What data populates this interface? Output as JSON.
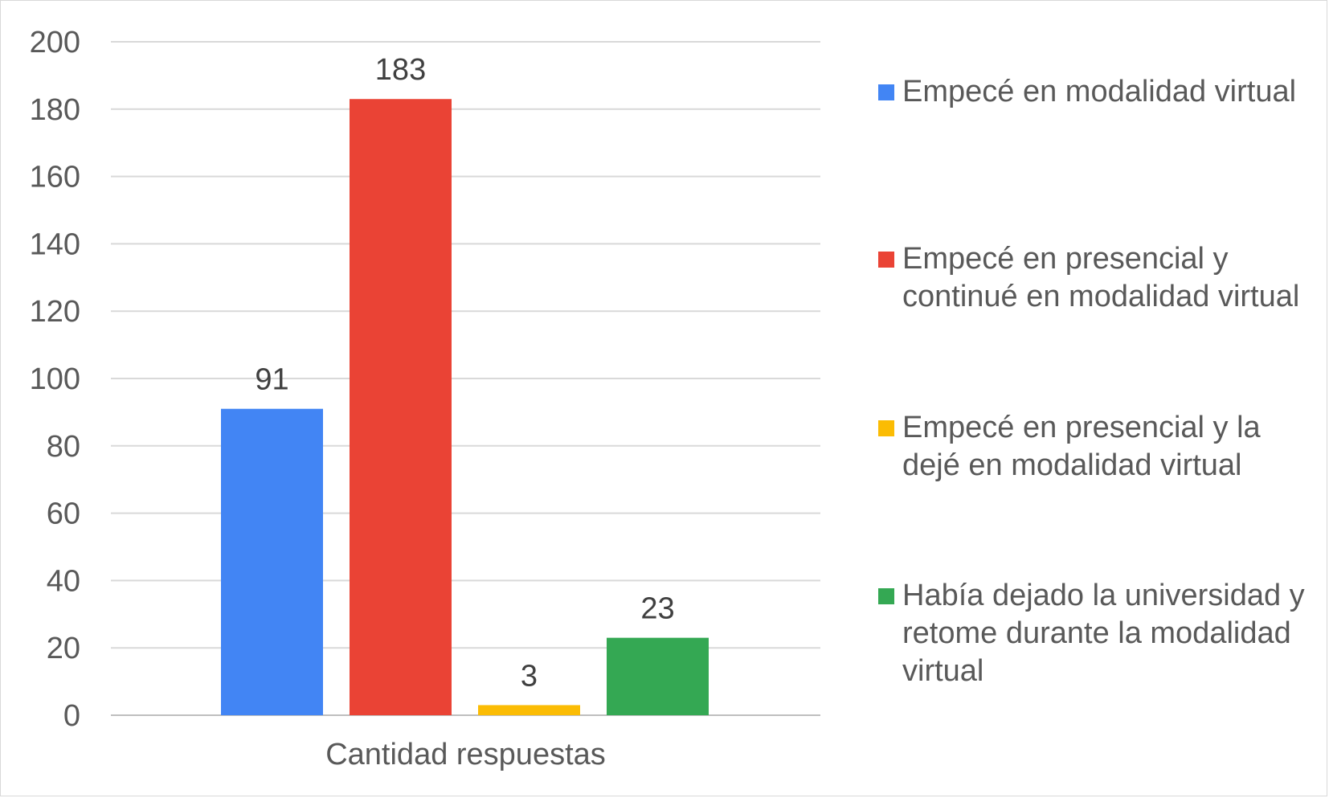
{
  "chart_data": {
    "type": "bar",
    "xlabel": "",
    "ylabel": "",
    "categories": [
      "Cantidad respuestas"
    ],
    "ylim": [
      0,
      200
    ],
    "yticks": [
      0,
      20,
      40,
      60,
      80,
      100,
      120,
      140,
      160,
      180,
      200
    ],
    "grid": true,
    "legend_position": "right",
    "data_labels": true,
    "series": [
      {
        "name": "Empecé en modalidad virtual",
        "values": [
          91
        ],
        "color": "#4285F4"
      },
      {
        "name": "Empecé en presencial y continué en modalidad virtual",
        "values": [
          183
        ],
        "color": "#EA4335"
      },
      {
        "name": "Empecé en presencial y la dejé en modalidad virtual",
        "values": [
          3
        ],
        "color": "#FBBC04"
      },
      {
        "name": "Había dejado la universidad y retome durante la modalidad virtual",
        "values": [
          23
        ],
        "color": "#34A853"
      }
    ]
  }
}
